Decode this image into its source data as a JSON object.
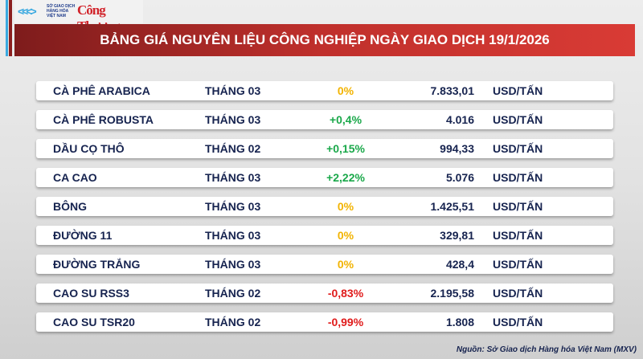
{
  "header": {
    "logo_mxv": "SỞ GIAO DỊCH HÀNG HÓA VIỆT NAM",
    "logo_ct": "Công Thương",
    "title": "BẢNG GIÁ NGUYÊN LIỆU CÔNG NGHIỆP NGÀY GIAO DỊCH 19/1/2026"
  },
  "colors": {
    "up": "#1aa84a",
    "flat": "#f2b300",
    "down": "#e01b1b",
    "text": "#16234f"
  },
  "rows": [
    {
      "name": "CÀ PHÊ ARABICA",
      "month": "THÁNG 03",
      "change": "0%",
      "trend": "flat",
      "price": "7.833,01",
      "unit": "USD/TẤN"
    },
    {
      "name": "CÀ PHÊ ROBUSTA",
      "month": "THÁNG 03",
      "change": "+0,4%",
      "trend": "up",
      "price": "4.016",
      "unit": "USD/TẤN"
    },
    {
      "name": "DẦU CỌ THÔ",
      "month": "THÁNG 02",
      "change": "+0,15%",
      "trend": "up",
      "price": "994,33",
      "unit": "USD/TẤN"
    },
    {
      "name": "CA CAO",
      "month": "THÁNG 03",
      "change": "+2,22%",
      "trend": "up",
      "price": "5.076",
      "unit": "USD/TẤN"
    },
    {
      "name": "BÔNG",
      "month": "THÁNG 03",
      "change": "0%",
      "trend": "flat",
      "price": "1.425,51",
      "unit": "USD/TẤN"
    },
    {
      "name": "ĐƯỜNG 11",
      "month": "THÁNG 03",
      "change": "0%",
      "trend": "flat",
      "price": "329,81",
      "unit": "USD/TẤN"
    },
    {
      "name": "ĐƯỜNG TRẮNG",
      "month": "THÁNG 03",
      "change": "0%",
      "trend": "flat",
      "price": "428,4",
      "unit": "USD/TẤN"
    },
    {
      "name": "CAO SU RSS3",
      "month": "THÁNG 02",
      "change": "-0,83%",
      "trend": "down",
      "price": "2.195,58",
      "unit": "USD/TẤN"
    },
    {
      "name": "CAO SU TSR20",
      "month": "THÁNG 02",
      "change": "-0,99%",
      "trend": "down",
      "price": "1.808",
      "unit": "USD/TẤN"
    }
  ],
  "source": "Nguồn: Sở Giao dịch Hàng hóa Việt Nam (MXV)"
}
